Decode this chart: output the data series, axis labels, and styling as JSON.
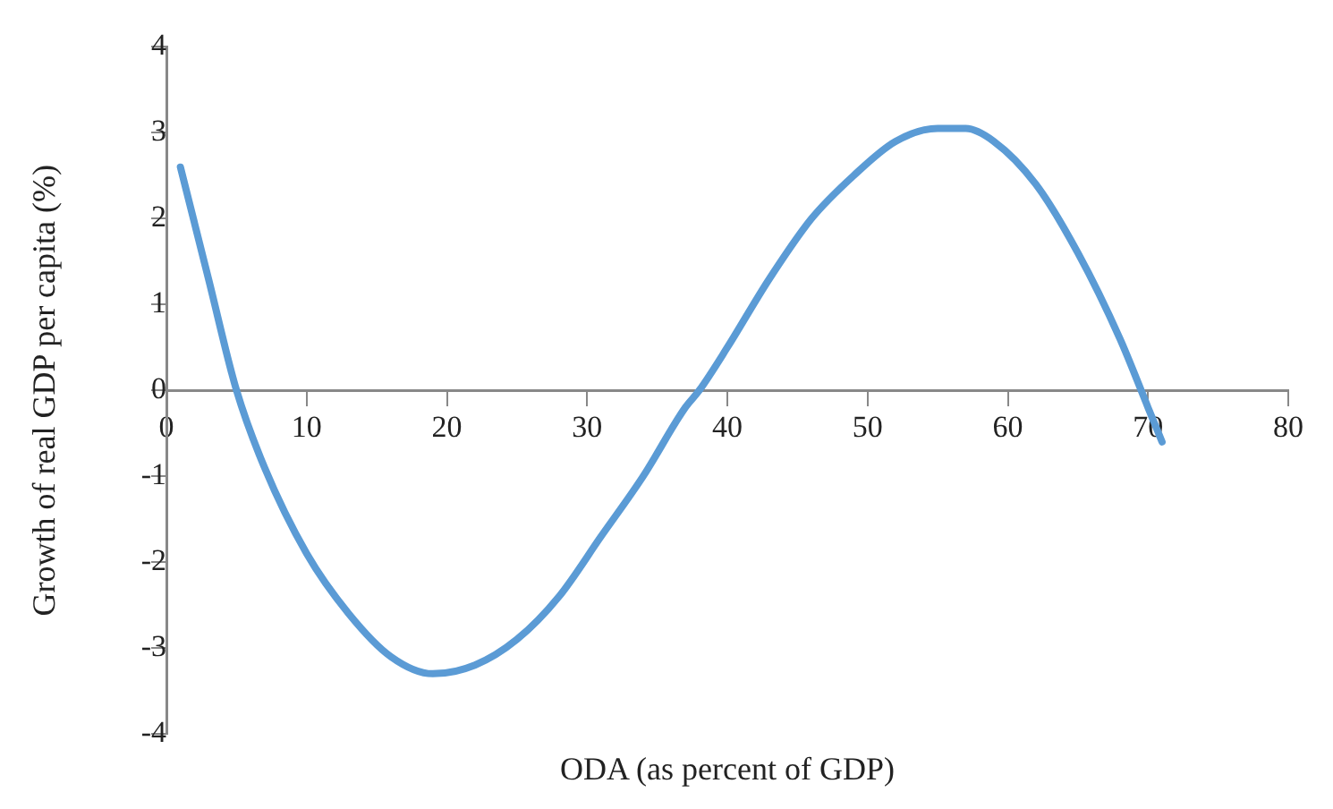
{
  "chart_data": {
    "type": "line",
    "xlabel": "ODA (as percent of GDP)",
    "ylabel": "Growth of real GDP per capita (%)",
    "x": [
      1,
      2,
      3,
      5,
      7,
      10,
      13,
      16,
      19,
      22,
      25,
      28,
      31,
      34,
      37,
      38,
      40,
      43,
      46,
      49,
      52,
      55,
      57,
      59,
      62,
      65,
      68,
      70,
      71
    ],
    "series": [
      {
        "color": "#5b9bd5",
        "values": [
          2.6,
          1.95,
          1.3,
          0,
          -0.9,
          -1.9,
          -2.6,
          -3.1,
          -3.3,
          -3.2,
          -2.9,
          -2.4,
          -1.7,
          -1.0,
          -0.2,
          0,
          0.5,
          1.3,
          2.0,
          2.5,
          2.9,
          3.05,
          3.05,
          2.9,
          2.4,
          1.6,
          0.6,
          -0.2,
          -0.6
        ]
      }
    ],
    "xlim": [
      0,
      80
    ],
    "xticks": [
      0,
      10,
      20,
      30,
      40,
      50,
      60,
      70,
      80
    ],
    "ylim": [
      -4,
      4
    ],
    "yticks": [
      -4,
      -3,
      -2,
      -1,
      0,
      1,
      2,
      3,
      4
    ],
    "grid": false,
    "legend": false,
    "marker": "none",
    "line_style": "solid"
  }
}
